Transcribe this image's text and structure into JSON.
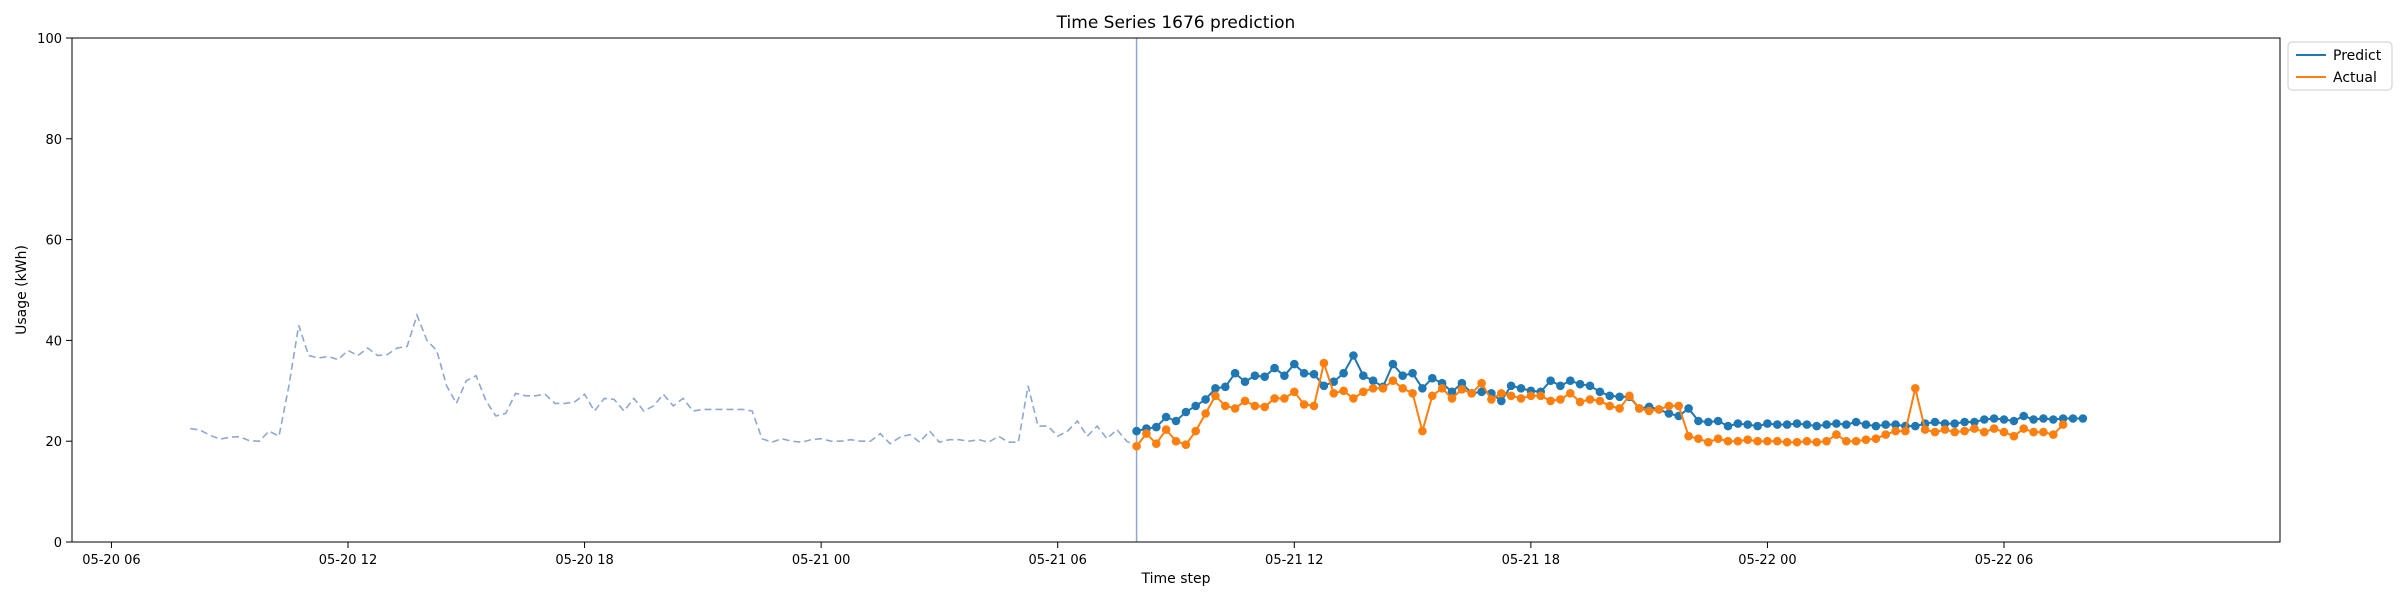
{
  "chart_data": {
    "type": "line",
    "title": "Time Series 1676 prediction",
    "xlabel": "Time step",
    "ylabel": "Usage (kWh)",
    "ylim": [
      0,
      100
    ],
    "yticks": [
      0,
      20,
      40,
      60,
      80,
      100
    ],
    "xlim": [
      "2024-05-20 05:00",
      "2024-05-22 13:00"
    ],
    "xticks": [
      {
        "t": "2024-05-20 06:00",
        "label": "05-20 06"
      },
      {
        "t": "2024-05-20 12:00",
        "label": "05-20 12"
      },
      {
        "t": "2024-05-20 18:00",
        "label": "05-20 18"
      },
      {
        "t": "2024-05-21 00:00",
        "label": "05-21 00"
      },
      {
        "t": "2024-05-21 06:00",
        "label": "05-21 06"
      },
      {
        "t": "2024-05-21 12:00",
        "label": "05-21 12"
      },
      {
        "t": "2024-05-21 18:00",
        "label": "05-21 18"
      },
      {
        "t": "2024-05-22 00:00",
        "label": "05-22 00"
      },
      {
        "t": "2024-05-22 06:00",
        "label": "05-22 06"
      }
    ],
    "legend_position": "outside-top-right",
    "grid": false,
    "forecast_start": "2024-05-21 08:00",
    "history": {
      "start": "2024-05-20 08:00",
      "step_minutes": 15,
      "color": "#8fa8cf",
      "style": "dashed",
      "values": [
        22.5,
        22.2,
        21.2,
        20.4,
        20.8,
        20.9,
        20.1,
        20.0,
        22.0,
        21.0,
        31.0,
        43.0,
        37.0,
        36.5,
        36.8,
        36.2,
        38.0,
        37.0,
        38.5,
        37.0,
        37.2,
        38.5,
        38.8,
        45.0,
        40.0,
        38.0,
        31.0,
        27.5,
        32.0,
        33.0,
        28.0,
        25.0,
        25.5,
        29.5,
        29.0,
        29.0,
        29.3,
        27.5,
        27.5,
        27.8,
        29.3,
        26.0,
        28.5,
        28.3,
        26.0,
        28.5,
        26.0,
        27.0,
        29.3,
        27.0,
        28.5,
        26.0,
        26.3,
        26.3,
        26.3,
        26.3,
        26.3,
        26.0,
        20.5,
        19.8,
        20.5,
        20.0,
        19.8,
        20.3,
        20.5,
        20.0,
        20.0,
        20.3,
        20.0,
        20.0,
        21.5,
        19.5,
        20.8,
        21.3,
        19.8,
        22.0,
        19.8,
        20.3,
        20.3,
        20.0,
        20.3,
        19.8,
        21.0,
        19.8,
        19.8,
        31.0,
        23.0,
        23.0,
        21.0,
        22.0,
        24.0,
        21.0,
        23.0,
        20.5,
        22.3,
        20.0,
        19.0
      ]
    },
    "series": [
      {
        "name": "Predict",
        "color": "#1f77b4",
        "start": "2024-05-21 08:00",
        "step_minutes": 15,
        "values": [
          22.0,
          22.5,
          22.8,
          24.8,
          24.0,
          25.8,
          27.0,
          28.3,
          30.5,
          30.8,
          33.5,
          31.8,
          33.0,
          32.8,
          34.5,
          33.0,
          35.3,
          33.5,
          33.3,
          31.0,
          31.8,
          33.5,
          37.0,
          33.0,
          32.0,
          30.8,
          35.3,
          33.0,
          33.5,
          30.5,
          32.5,
          31.5,
          29.8,
          31.5,
          29.5,
          29.8,
          29.5,
          28.0,
          31.0,
          30.5,
          30.0,
          29.8,
          32.0,
          31.0,
          32.0,
          31.3,
          31.0,
          29.8,
          29.0,
          28.8,
          28.8,
          26.5,
          26.8,
          26.3,
          25.5,
          25.0,
          26.5,
          24.0,
          23.8,
          24.0,
          23.0,
          23.5,
          23.3,
          23.0,
          23.5,
          23.3,
          23.3,
          23.5,
          23.3,
          23.0,
          23.3,
          23.5,
          23.3,
          23.8,
          23.3,
          23.0,
          23.3,
          23.3,
          23.0,
          23.0,
          23.5,
          23.8,
          23.5,
          23.5,
          23.8,
          23.8,
          24.3,
          24.5,
          24.3,
          24.0,
          25.0,
          24.3,
          24.5,
          24.3,
          24.5,
          24.5,
          24.5
        ]
      },
      {
        "name": "Actual",
        "color": "#ff7f0e",
        "start": "2024-05-21 08:00",
        "step_minutes": 15,
        "values": [
          19.0,
          21.5,
          19.5,
          22.3,
          20.0,
          19.3,
          22.0,
          25.5,
          29.0,
          27.0,
          26.5,
          28.0,
          27.0,
          26.8,
          28.5,
          28.5,
          29.8,
          27.3,
          27.0,
          35.5,
          29.5,
          30.0,
          28.5,
          29.8,
          30.5,
          30.5,
          32.0,
          30.5,
          29.5,
          22.0,
          29.0,
          30.5,
          28.5,
          30.3,
          29.5,
          31.5,
          28.3,
          29.5,
          29.0,
          28.5,
          29.0,
          29.0,
          28.0,
          28.3,
          29.5,
          27.8,
          28.3,
          28.0,
          27.0,
          26.5,
          29.0,
          26.5,
          26.0,
          26.3,
          27.0,
          27.0,
          21.0,
          20.5,
          19.8,
          20.5,
          20.0,
          20.0,
          20.3,
          20.0,
          20.0,
          20.0,
          19.8,
          19.8,
          20.0,
          19.8,
          20.0,
          21.3,
          20.0,
          20.0,
          20.3,
          20.5,
          21.3,
          22.0,
          22.0,
          30.5,
          22.3,
          21.8,
          22.3,
          21.8,
          22.0,
          22.5,
          21.8,
          22.5,
          21.8,
          21.0,
          22.5,
          21.8,
          21.8,
          21.3,
          23.3
        ]
      }
    ]
  }
}
